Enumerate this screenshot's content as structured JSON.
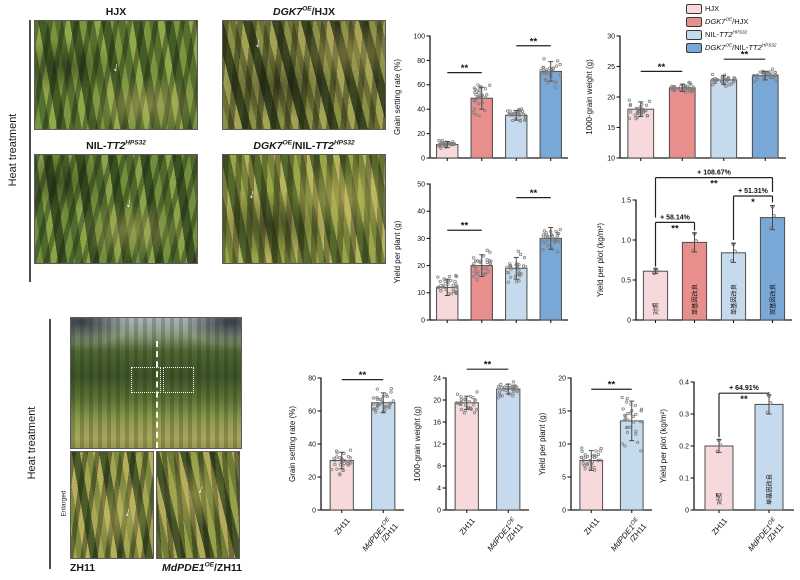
{
  "icons": {
    "arrow_down": "↓"
  },
  "palette": {
    "hjx": "#f7d9dc",
    "dgk7_hjx": "#e88f8d",
    "nil_tt2": "#c6daee",
    "dgk7_nil_tt2": "#79a7d6",
    "axis": "#1a1a1a"
  },
  "panels": {
    "top_left": {
      "side_label": "Heat treatment",
      "photos": [
        {
          "label": "HJX"
        },
        {
          "label": "*DGK7*^{OE}/HJX"
        },
        {
          "label": "NIL-*TT2*^{HPS32}"
        },
        {
          "label": "*DGK7*^{OE}/NIL-*TT2*^{HPS32}"
        }
      ]
    },
    "bottom_left": {
      "side_label": "Heat treatment",
      "enlarged_label": "Enlarged",
      "captions": [
        "ZH11",
        "*MdPDE1*^{OE}/ZH11"
      ]
    }
  },
  "legend": {
    "items": [
      {
        "label": "HJX",
        "color": "#f7d9dc"
      },
      {
        "label": "*DGK7*^{OE}/HJX",
        "color": "#e88f8d"
      },
      {
        "label": "NIL-*TT2*^{HPS32}",
        "color": "#c6daee"
      },
      {
        "label": "*DGK7*^{OE}/NIL-*TT2*^{HPS32}",
        "color": "#79a7d6"
      }
    ]
  },
  "chart_data": [
    {
      "name": "grain-setting-rate-heat",
      "type": "bar",
      "ylabel": "Grain setting rate (%)",
      "ylim": [
        0,
        100
      ],
      "yticks": [
        "0",
        "20",
        "40",
        "60",
        "80",
        "100"
      ],
      "categories": [
        "HJX",
        "DGK7OE/HJX",
        "NIL-TT2HPS32",
        "DGK7OE/NIL-TT2HPS32"
      ],
      "values": [
        11,
        49,
        35,
        71
      ],
      "errors": [
        2.5,
        9,
        4,
        8
      ],
      "bar_colors": [
        "#f7d9dc",
        "#e88f8d",
        "#c6daee",
        "#79a7d6"
      ],
      "dots": 30,
      "annotations": [
        {
          "pair": [
            0,
            1
          ],
          "y": 70,
          "sig": "**"
        },
        {
          "pair": [
            2,
            3
          ],
          "y": 92,
          "sig": "**"
        }
      ]
    },
    {
      "name": "thousand-grain-weight-heat",
      "type": "bar",
      "ylabel": "1000-grain weight (g)",
      "ylim": [
        10,
        30
      ],
      "yticks": [
        "10",
        "15",
        "20",
        "25",
        "30"
      ],
      "categories": [
        "HJX",
        "DGK7OE/HJX",
        "NIL-TT2HPS32",
        "DGK7OE/NIL-TT2HPS32"
      ],
      "values": [
        18,
        21.5,
        22.8,
        23.5
      ],
      "errors": [
        1.2,
        0.6,
        0.7,
        0.7
      ],
      "bar_colors": [
        "#f7d9dc",
        "#e88f8d",
        "#c6daee",
        "#79a7d6"
      ],
      "dots": 30,
      "annotations": [
        {
          "pair": [
            0,
            1
          ],
          "y": 24.2,
          "sig": "**"
        },
        {
          "pair": [
            2,
            3
          ],
          "y": 26.2,
          "sig": "**"
        }
      ]
    },
    {
      "name": "yield-per-plant-heat",
      "type": "bar",
      "ylabel": "Yield per plant (g)",
      "ylim": [
        0,
        50
      ],
      "yticks": [
        "0",
        "10",
        "20",
        "30",
        "40",
        "50"
      ],
      "categories": [
        "HJX",
        "DGK7OE/HJX",
        "NIL-TT2HPS32",
        "DGK7OE/NIL-TT2HPS32"
      ],
      "values": [
        12,
        20,
        19,
        30
      ],
      "errors": [
        3,
        4,
        4,
        4
      ],
      "bar_colors": [
        "#f7d9dc",
        "#e88f8d",
        "#c6daee",
        "#79a7d6"
      ],
      "dots": 30,
      "annotations": [
        {
          "pair": [
            0,
            1
          ],
          "y": 33,
          "sig": "**"
        },
        {
          "pair": [
            2,
            3
          ],
          "y": 45,
          "sig": "**"
        }
      ]
    },
    {
      "name": "yield-per-plot-heat",
      "type": "bar",
      "ylabel": "Yield per plot (kg/m²)",
      "ylim": [
        0,
        1.5
      ],
      "yticks": [
        "0",
        "0.5",
        "1.0",
        "1.5"
      ],
      "categories": [
        "HJX",
        "DGK7OE/HJX",
        "NIL-TT2HPS32",
        "DGK7OE/NIL-TT2HPS32"
      ],
      "values": [
        0.61,
        0.97,
        0.84,
        1.28
      ],
      "errors": [
        0.03,
        0.12,
        0.12,
        0.15
      ],
      "bar_colors": [
        "#f7d9dc",
        "#e88f8d",
        "#c6daee",
        "#79a7d6"
      ],
      "dots": 3,
      "bar_labels": [
        "对照",
        "单基因改良",
        "单基因改良",
        "双基因改良"
      ],
      "annotations": [
        {
          "pair": [
            0,
            1
          ],
          "y": 1.22,
          "pct": "+ 58.14%",
          "sig": "**",
          "arms": [
            0.67,
            1.12
          ]
        },
        {
          "pair": [
            2,
            3
          ],
          "y": 1.55,
          "pct": "+ 51.31%",
          "sig": "*",
          "arms": [
            1.0,
            1.47
          ]
        },
        {
          "pair": [
            0,
            3
          ],
          "y": 1.78,
          "pct": "+ 108.67%",
          "sig": "**",
          "arms": [
            1.28,
            1.6
          ]
        }
      ]
    },
    {
      "name": "grain-setting-rate-zh11",
      "type": "bar",
      "ylabel": "Grain setting rate (%)",
      "ylim": [
        0,
        80
      ],
      "yticks": [
        "0",
        "20",
        "40",
        "60",
        "80"
      ],
      "categories": [
        "ZH11",
        "MdPDE1OE/ZH11"
      ],
      "values": [
        30,
        65
      ],
      "errors": [
        5,
        6
      ],
      "bar_colors": [
        "#f7d9dc",
        "#c6daee"
      ],
      "dots": 30,
      "xlabels": [
        [
          "ZH11"
        ],
        [
          "*MdPDE1*^{OE}",
          "/ZH11"
        ]
      ],
      "annotations": [
        {
          "pair": [
            0,
            1
          ],
          "y": 79,
          "sig": "**"
        }
      ]
    },
    {
      "name": "thousand-grain-weight-zh11",
      "type": "bar",
      "ylabel": "1000-grain weight (g)",
      "ylim": [
        0,
        24
      ],
      "yticks": [
        "0",
        "4",
        "8",
        "12",
        "16",
        "20",
        "24"
      ],
      "categories": [
        "ZH11",
        "MdPDE1OE/ZH11"
      ],
      "values": [
        19.5,
        22
      ],
      "errors": [
        1.2,
        0.9
      ],
      "bar_colors": [
        "#f7d9dc",
        "#c6daee"
      ],
      "dots": 30,
      "xlabels": [
        [
          "ZH11"
        ],
        [
          "*MdPDE1*^{OE}",
          "/ZH11"
        ]
      ],
      "annotations": [
        {
          "pair": [
            0,
            1
          ],
          "y": 25.6,
          "sig": "**"
        }
      ]
    },
    {
      "name": "yield-per-plant-zh11",
      "type": "bar",
      "ylabel": "Yield per plant (g)",
      "ylim": [
        0,
        20
      ],
      "yticks": [
        "0",
        "5",
        "10",
        "15",
        "20"
      ],
      "categories": [
        "ZH11",
        "MdPDE1OE/ZH11"
      ],
      "values": [
        7.5,
        13.5
      ],
      "errors": [
        1.5,
        3
      ],
      "bar_colors": [
        "#f7d9dc",
        "#c6daee"
      ],
      "dots": 30,
      "xlabels": [
        [
          "ZH11"
        ],
        [
          "*MdPDE1*^{OE}",
          "/ZH11"
        ]
      ],
      "annotations": [
        {
          "pair": [
            0,
            1
          ],
          "y": 18.3,
          "sig": "**"
        }
      ]
    },
    {
      "name": "yield-per-plot-zh11",
      "type": "bar",
      "ylabel": "Yield per plot (kg/m²)",
      "ylim": [
        0,
        0.4
      ],
      "yticks": [
        "0",
        "0.1",
        "0.2",
        "0.3",
        "0.4"
      ],
      "categories": [
        "ZH11",
        "MdPDE1OE/ZH11"
      ],
      "values": [
        0.2,
        0.33
      ],
      "errors": [
        0.02,
        0.03
      ],
      "bar_colors": [
        "#f7d9dc",
        "#c6daee"
      ],
      "dots": 3,
      "bar_labels": [
        "对照",
        "单基因改良"
      ],
      "xlabels": [
        [
          "ZH11"
        ],
        [
          "*MdPDE1*^{OE}",
          "/ZH11"
        ]
      ],
      "annotations": [
        {
          "pair": [
            0,
            1
          ],
          "y": 0.365,
          "pct": "+ 64.91%",
          "sig": "**"
        }
      ]
    }
  ]
}
